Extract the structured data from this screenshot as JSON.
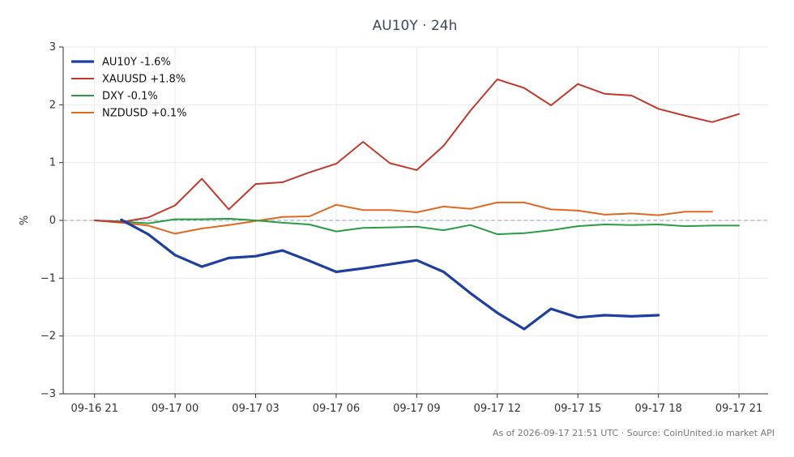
{
  "chart_data": {
    "type": "line",
    "title": "AU10Y · 24h",
    "ylabel": "%",
    "xlabel": "",
    "ylim": [
      -3,
      3
    ],
    "yticks": [
      -3,
      -2,
      -1,
      0,
      1,
      2,
      3
    ],
    "ytick_labels": [
      "−3",
      "−2",
      "−1",
      "0",
      "1",
      "2",
      "3"
    ],
    "xticks": [
      "2026-09-16 21:00",
      "2026-09-17 00:00",
      "2026-09-17 03:00",
      "2026-09-17 06:00",
      "2026-09-17 09:00",
      "2026-09-17 12:00",
      "2026-09-17 15:00",
      "2026-09-17 18:00",
      "2026-09-17 21:00"
    ],
    "xtick_labels": [
      "09-16 21",
      "09-17 00",
      "09-17 03",
      "09-17 06",
      "09-17 09",
      "09-17 12",
      "09-17 15",
      "09-17 18",
      "09-17 21"
    ],
    "xlim": [
      "2026-09-16 19:50",
      "2026-09-17 22:05"
    ],
    "grid": true,
    "zero_line": true,
    "legend_position": "top-left",
    "series": [
      {
        "name": "AU10Y -1.6%",
        "color": "#1f3fa0",
        "x": [
          "2026-09-16 22:00",
          "2026-09-16 23:00",
          "2026-09-17 00:00",
          "2026-09-17 01:00",
          "2026-09-17 02:00",
          "2026-09-17 03:00",
          "2026-09-17 04:00",
          "2026-09-17 05:00",
          "2026-09-17 06:00",
          "2026-09-17 07:00",
          "2026-09-17 08:00",
          "2026-09-17 09:00",
          "2026-09-17 10:00",
          "2026-09-17 11:00",
          "2026-09-17 12:00",
          "2026-09-17 13:00",
          "2026-09-17 14:00",
          "2026-09-17 15:00",
          "2026-09-17 16:00",
          "2026-09-17 17:00",
          "2026-09-17 18:00"
        ],
        "values": [
          0.01,
          -0.24,
          -0.6,
          -0.8,
          -0.65,
          -0.62,
          -0.52,
          -0.7,
          -0.89,
          -0.83,
          -0.76,
          -0.69,
          -0.89,
          -1.26,
          -1.6,
          -1.88,
          -1.53,
          -1.68,
          -1.64,
          -1.66,
          -1.64
        ]
      },
      {
        "name": "XAUUSD +1.8%",
        "color": "#c0392b",
        "x": [
          "2026-09-16 21:00",
          "2026-09-16 22:00",
          "2026-09-16 23:00",
          "2026-09-17 00:00",
          "2026-09-17 01:00",
          "2026-09-17 02:00",
          "2026-09-17 03:00",
          "2026-09-17 04:00",
          "2026-09-17 05:00",
          "2026-09-17 06:00",
          "2026-09-17 07:00",
          "2026-09-17 08:00",
          "2026-09-17 09:00",
          "2026-09-17 10:00",
          "2026-09-17 11:00",
          "2026-09-17 12:00",
          "2026-09-17 13:00",
          "2026-09-17 14:00",
          "2026-09-17 15:00",
          "2026-09-17 16:00",
          "2026-09-17 17:00",
          "2026-09-17 18:00",
          "2026-09-17 19:00",
          "2026-09-17 20:00",
          "2026-09-17 21:00"
        ],
        "values": [
          0.0,
          -0.03,
          0.05,
          0.26,
          0.72,
          0.19,
          0.63,
          0.66,
          0.83,
          0.98,
          1.36,
          0.99,
          0.87,
          1.29,
          1.9,
          2.44,
          2.29,
          1.99,
          2.36,
          2.19,
          2.16,
          1.93,
          1.81,
          1.7,
          1.84
        ]
      },
      {
        "name": "DXY -0.1%",
        "color": "#2a9d44",
        "x": [
          "2026-09-16 21:00",
          "2026-09-16 22:00",
          "2026-09-16 23:00",
          "2026-09-17 00:00",
          "2026-09-17 01:00",
          "2026-09-17 02:00",
          "2026-09-17 03:00",
          "2026-09-17 04:00",
          "2026-09-17 05:00",
          "2026-09-17 06:00",
          "2026-09-17 07:00",
          "2026-09-17 08:00",
          "2026-09-17 09:00",
          "2026-09-17 10:00",
          "2026-09-17 11:00",
          "2026-09-17 12:00",
          "2026-09-17 13:00",
          "2026-09-17 14:00",
          "2026-09-17 15:00",
          "2026-09-17 16:00",
          "2026-09-17 17:00",
          "2026-09-17 18:00",
          "2026-09-17 19:00",
          "2026-09-17 20:00",
          "2026-09-17 21:00"
        ],
        "values": [
          0.0,
          -0.02,
          -0.05,
          0.02,
          0.02,
          0.03,
          0.0,
          -0.04,
          -0.07,
          -0.19,
          -0.13,
          -0.12,
          -0.11,
          -0.17,
          -0.08,
          -0.24,
          -0.22,
          -0.17,
          -0.1,
          -0.07,
          -0.08,
          -0.07,
          -0.1,
          -0.09,
          -0.09
        ]
      },
      {
        "name": "NZDUSD +0.1%",
        "color": "#e0681e",
        "x": [
          "2026-09-16 21:00",
          "2026-09-16 22:00",
          "2026-09-16 23:00",
          "2026-09-17 00:00",
          "2026-09-17 01:00",
          "2026-09-17 02:00",
          "2026-09-17 03:00",
          "2026-09-17 04:00",
          "2026-09-17 05:00",
          "2026-09-17 06:00",
          "2026-09-17 07:00",
          "2026-09-17 08:00",
          "2026-09-17 09:00",
          "2026-09-17 10:00",
          "2026-09-17 11:00",
          "2026-09-17 12:00",
          "2026-09-17 13:00",
          "2026-09-17 14:00",
          "2026-09-17 15:00",
          "2026-09-17 16:00",
          "2026-09-17 17:00",
          "2026-09-17 18:00",
          "2026-09-17 19:00",
          "2026-09-17 20:00"
        ],
        "values": [
          0.0,
          -0.04,
          -0.09,
          -0.23,
          -0.14,
          -0.08,
          -0.01,
          0.06,
          0.07,
          0.27,
          0.18,
          0.18,
          0.14,
          0.24,
          0.2,
          0.31,
          0.31,
          0.19,
          0.17,
          0.1,
          0.12,
          0.09,
          0.15,
          0.15
        ]
      }
    ],
    "footer": "As of 2026-09-17 21:51 UTC · Source: CoinUnited.io market API"
  }
}
